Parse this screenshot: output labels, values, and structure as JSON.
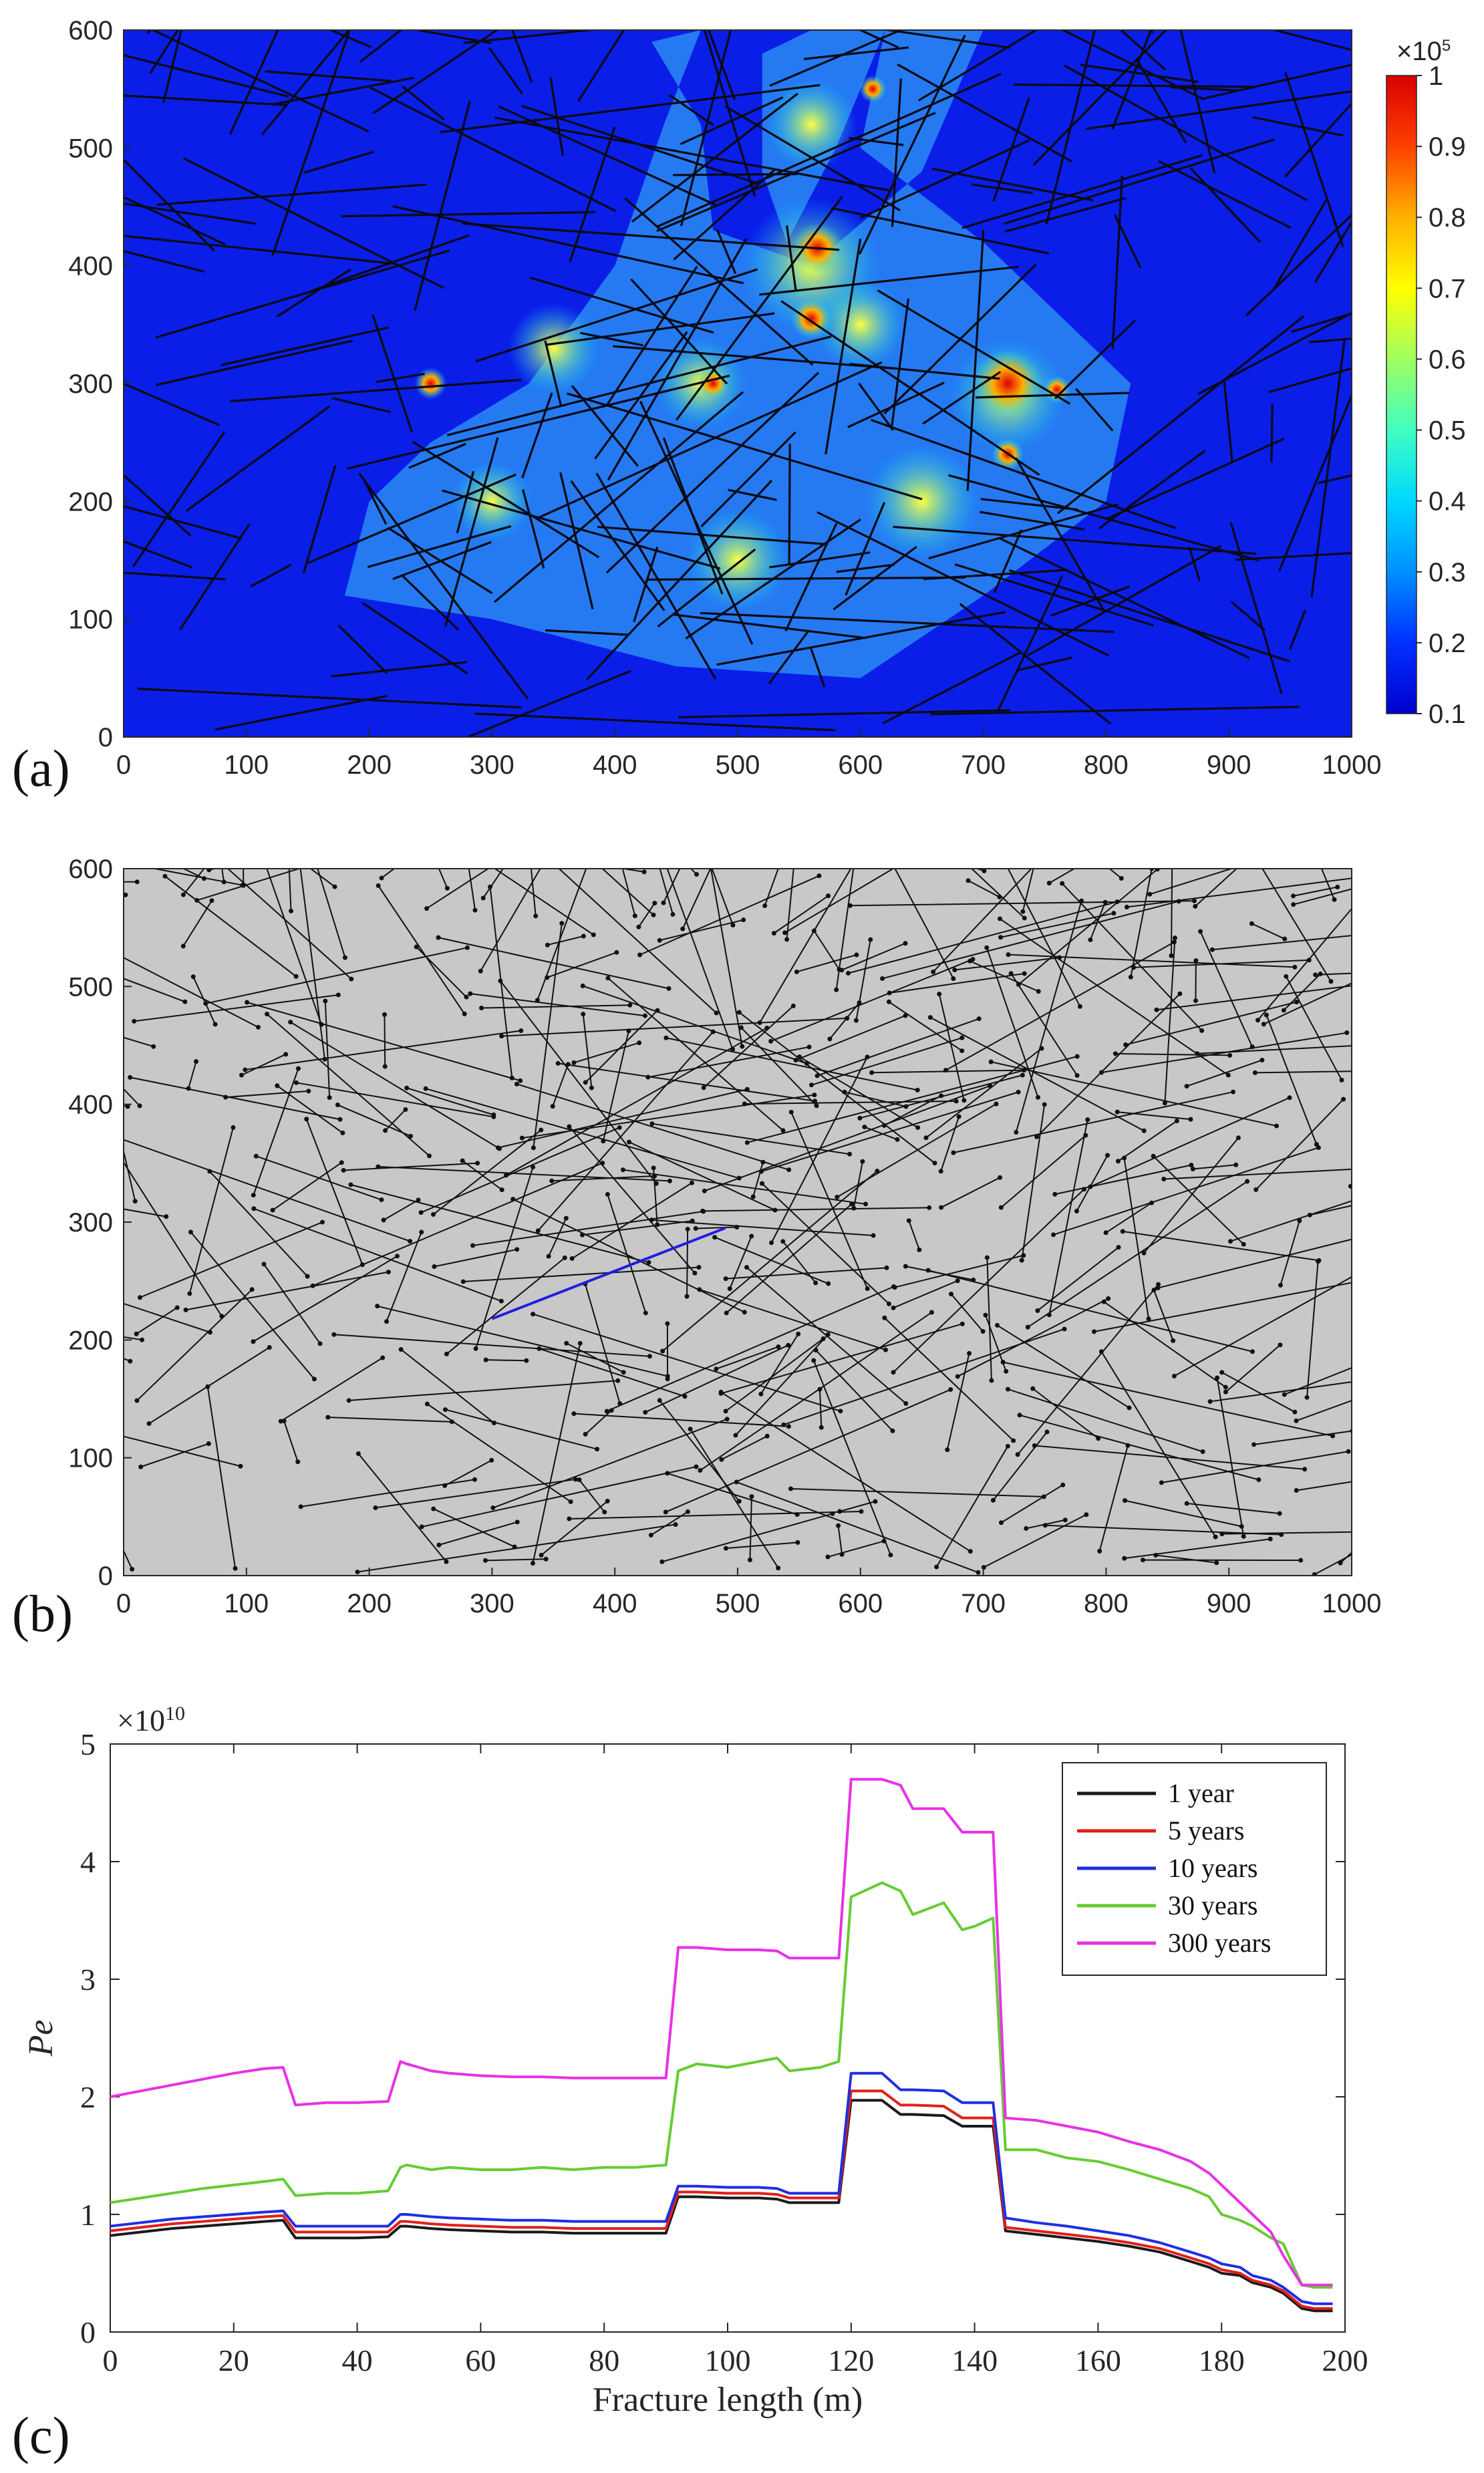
{
  "panels": {
    "a": {
      "label": "(a)",
      "xticks": [
        0,
        100,
        200,
        300,
        400,
        500,
        600,
        700,
        800,
        900,
        1000
      ],
      "yticks": [
        0,
        100,
        200,
        300,
        400,
        500,
        600
      ],
      "xlim": [
        0,
        1000
      ],
      "ylim": [
        0,
        600
      ],
      "colorbar": {
        "exponent_label": "×10",
        "exponent_power": "5",
        "ticks": [
          1,
          0.9,
          0.8,
          0.7,
          0.6,
          0.5,
          0.4,
          0.3,
          0.2,
          0.1
        ],
        "range": [
          0.1,
          1
        ],
        "colors": [
          "#0000cc",
          "#0030ff",
          "#0090ff",
          "#00d8ff",
          "#40ffc0",
          "#a0ff60",
          "#ffff00",
          "#ffb000",
          "#ff4000",
          "#d80000"
        ]
      }
    },
    "b": {
      "label": "(b)",
      "xticks": [
        0,
        100,
        200,
        300,
        400,
        500,
        600,
        700,
        800,
        900,
        1000
      ],
      "yticks": [
        0,
        100,
        200,
        300,
        400,
        500,
        600
      ],
      "xlim": [
        0,
        1000
      ],
      "ylim": [
        0,
        600
      ],
      "background": "#c8c8c8",
      "highlight_fracture": {
        "x": [
          300,
          490
        ],
        "y": [
          218,
          295
        ],
        "color": "#1f1fe0"
      }
    }
  },
  "chart_data": {
    "type": "line",
    "panel_label": "(c)",
    "xlabel": "Fracture length (m)",
    "ylabel": "Pe",
    "y_exponent": "×10",
    "y_exponent_power": "10",
    "xlim": [
      0,
      200
    ],
    "ylim": [
      0,
      5
    ],
    "xticks": [
      0,
      20,
      40,
      60,
      80,
      100,
      120,
      140,
      160,
      180,
      200
    ],
    "yticks": [
      0,
      1,
      2,
      3,
      4,
      5
    ],
    "legend_position": "top-right",
    "x": [
      0,
      5,
      10,
      15,
      20,
      25,
      28,
      30,
      35,
      40,
      45,
      47,
      48,
      52,
      55,
      60,
      65,
      70,
      75,
      80,
      85,
      90,
      92,
      95,
      100,
      105,
      108,
      110,
      115,
      118,
      120,
      125,
      128,
      130,
      135,
      138,
      140,
      143,
      145,
      150,
      155,
      160,
      165,
      170,
      175,
      178,
      180,
      183,
      185,
      188,
      190,
      193,
      195,
      198
    ],
    "series": [
      {
        "name": "1 year",
        "color": "#1a1a1a",
        "values": [
          0.82,
          0.85,
          0.88,
          0.9,
          0.92,
          0.94,
          0.95,
          0.8,
          0.8,
          0.8,
          0.81,
          0.9,
          0.9,
          0.88,
          0.87,
          0.86,
          0.85,
          0.85,
          0.84,
          0.84,
          0.84,
          0.84,
          1.15,
          1.15,
          1.14,
          1.14,
          1.13,
          1.1,
          1.1,
          1.1,
          1.97,
          1.97,
          1.85,
          1.85,
          1.84,
          1.75,
          1.75,
          1.75,
          0.86,
          0.83,
          0.8,
          0.77,
          0.73,
          0.68,
          0.6,
          0.55,
          0.5,
          0.48,
          0.42,
          0.38,
          0.33,
          0.2,
          0.18,
          0.18
        ]
      },
      {
        "name": "5 years",
        "color": "#e0201a",
        "values": [
          0.86,
          0.89,
          0.92,
          0.94,
          0.96,
          0.98,
          0.99,
          0.85,
          0.85,
          0.85,
          0.85,
          0.94,
          0.94,
          0.92,
          0.91,
          0.9,
          0.89,
          0.89,
          0.88,
          0.88,
          0.88,
          0.88,
          1.19,
          1.19,
          1.18,
          1.18,
          1.17,
          1.14,
          1.14,
          1.14,
          2.05,
          2.05,
          1.93,
          1.93,
          1.92,
          1.82,
          1.82,
          1.82,
          0.89,
          0.86,
          0.83,
          0.8,
          0.76,
          0.71,
          0.63,
          0.58,
          0.53,
          0.5,
          0.44,
          0.4,
          0.35,
          0.22,
          0.2,
          0.2
        ]
      },
      {
        "name": "10 years",
        "color": "#1f2fe0",
        "values": [
          0.9,
          0.93,
          0.96,
          0.98,
          1.0,
          1.02,
          1.03,
          0.9,
          0.9,
          0.9,
          0.9,
          1.0,
          1.0,
          0.98,
          0.97,
          0.96,
          0.95,
          0.95,
          0.94,
          0.94,
          0.94,
          0.94,
          1.24,
          1.24,
          1.23,
          1.23,
          1.22,
          1.18,
          1.18,
          1.18,
          2.2,
          2.2,
          2.06,
          2.06,
          2.05,
          1.95,
          1.95,
          1.95,
          0.97,
          0.93,
          0.9,
          0.86,
          0.82,
          0.76,
          0.68,
          0.63,
          0.58,
          0.55,
          0.48,
          0.44,
          0.38,
          0.26,
          0.24,
          0.24
        ]
      },
      {
        "name": "30 years",
        "color": "#66cc33",
        "values": [
          1.1,
          1.14,
          1.18,
          1.22,
          1.25,
          1.28,
          1.3,
          1.16,
          1.18,
          1.18,
          1.2,
          1.4,
          1.42,
          1.38,
          1.4,
          1.38,
          1.38,
          1.4,
          1.38,
          1.4,
          1.4,
          1.42,
          2.22,
          2.28,
          2.25,
          2.3,
          2.33,
          2.22,
          2.25,
          2.3,
          3.7,
          3.82,
          3.75,
          3.55,
          3.65,
          3.42,
          3.45,
          3.52,
          1.55,
          1.55,
          1.48,
          1.45,
          1.38,
          1.3,
          1.22,
          1.15,
          1.0,
          0.95,
          0.9,
          0.8,
          0.75,
          0.4,
          0.38,
          0.38
        ]
      },
      {
        "name": "300 years",
        "color": "#e632e6",
        "values": [
          2.0,
          2.05,
          2.1,
          2.15,
          2.2,
          2.24,
          2.25,
          1.93,
          1.95,
          1.95,
          1.96,
          2.3,
          2.28,
          2.22,
          2.2,
          2.18,
          2.17,
          2.17,
          2.16,
          2.16,
          2.16,
          2.16,
          3.27,
          3.27,
          3.25,
          3.25,
          3.24,
          3.18,
          3.18,
          3.18,
          4.7,
          4.7,
          4.65,
          4.45,
          4.45,
          4.25,
          4.25,
          4.25,
          1.82,
          1.8,
          1.75,
          1.7,
          1.62,
          1.55,
          1.45,
          1.35,
          1.25,
          1.1,
          1.0,
          0.85,
          0.65,
          0.4,
          0.4,
          0.4
        ]
      }
    ]
  }
}
